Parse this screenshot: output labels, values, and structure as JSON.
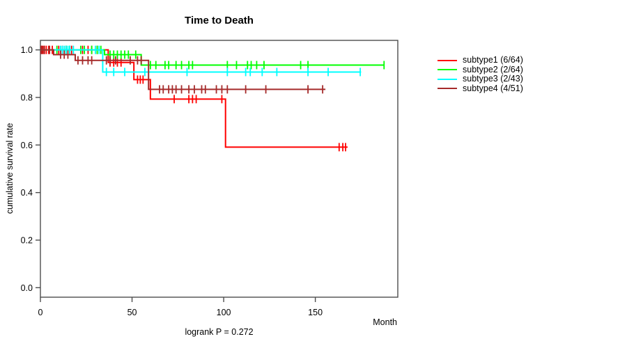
{
  "chart_data": {
    "type": "line",
    "variant": "kaplan-meier-step-survival",
    "title": "Time to Death",
    "xlabel": "Month",
    "ylabel": "cumulative survival rate",
    "subtitle": "logrank P = 0.272",
    "xlim": [
      0,
      195
    ],
    "ylim": [
      -0.04,
      1.04
    ],
    "xticks": [
      0,
      50,
      100,
      150
    ],
    "yticks": [
      0.0,
      0.2,
      0.4,
      0.6,
      0.8,
      1.0
    ],
    "ytick_labels": [
      "0.0",
      "0.2",
      "0.4",
      "0.6",
      "0.8",
      "1.0"
    ],
    "grid": false,
    "legend_position": "right",
    "axis_color": "#4d4d4d",
    "series": [
      {
        "name": "subtype1 (6/64)",
        "color": "#ff0000",
        "start": [
          0,
          1.0
        ],
        "drops": [
          [
            37,
            0.947
          ],
          [
            51,
            0.875
          ],
          [
            60,
            0.793
          ],
          [
            101,
            0.591
          ]
        ],
        "end_month": 167.6,
        "censor_months": [
          0.5,
          1.3,
          2.2,
          3.2,
          4.5,
          6.5,
          10,
          12,
          14,
          17,
          23,
          26,
          28,
          31,
          38,
          40,
          42,
          44,
          53,
          54.5,
          56,
          73,
          81,
          83,
          85,
          99,
          163,
          165,
          166.5
        ]
      },
      {
        "name": "subtype2 (2/64)",
        "color": "#00ff00",
        "start": [
          0,
          1.0
        ],
        "drops": [
          [
            35,
            0.98
          ],
          [
            55,
            0.936
          ]
        ],
        "end_month": 187.5,
        "censor_months": [
          9,
          14,
          16,
          22,
          24,
          28,
          31,
          33,
          38,
          40,
          42,
          44,
          46,
          48,
          52,
          60,
          63,
          68,
          70,
          74,
          77,
          81,
          83,
          102,
          107,
          113,
          115,
          118,
          122,
          142,
          146,
          187.5
        ]
      },
      {
        "name": "subtype3 (2/43)",
        "color": "#00ffff",
        "start": [
          0,
          1.0
        ],
        "drops": [
          [
            34,
            0.907
          ]
        ],
        "end_month": 175,
        "censor_months": [
          11,
          12,
          13,
          14,
          15,
          16,
          18,
          30,
          32,
          36,
          40,
          46,
          57,
          80,
          102,
          112,
          114.5,
          121,
          129,
          146,
          157,
          174.5
        ]
      },
      {
        "name": "subtype4 (4/51)",
        "color": "#a52a2a",
        "start": [
          0,
          1.0
        ],
        "drops": [
          [
            7.2,
            0.98
          ],
          [
            19,
            0.956
          ],
          [
            59,
            0.834
          ]
        ],
        "end_month": 155.5,
        "censor_months": [
          0.8,
          2,
          5,
          11,
          13,
          15,
          20.5,
          23,
          26,
          28,
          36,
          38,
          41,
          49,
          53,
          55,
          65,
          67,
          70,
          72,
          74,
          77,
          81,
          84,
          88,
          90,
          96,
          99,
          102,
          112,
          123,
          146,
          154
        ]
      }
    ]
  }
}
